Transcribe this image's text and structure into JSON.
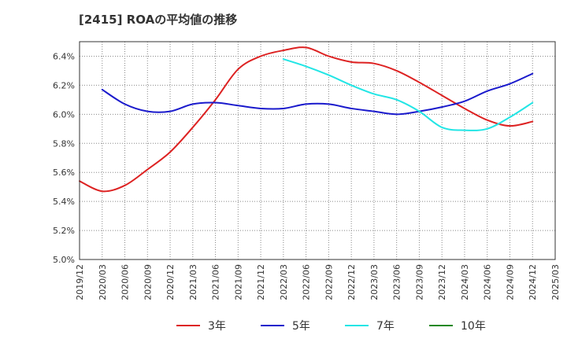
{
  "chart_data": {
    "type": "line",
    "title": "[2415]  ROAの平均値の推移",
    "xlabel": "",
    "ylabel": "",
    "grid": true,
    "legend_position": "bottom",
    "ylim": [
      5.0,
      6.5
    ],
    "x_ticks": [
      "2019/12",
      "2020/03",
      "2020/06",
      "2020/09",
      "2020/12",
      "2021/03",
      "2021/06",
      "2021/09",
      "2021/12",
      "2022/03",
      "2022/06",
      "2022/09",
      "2022/12",
      "2023/03",
      "2023/06",
      "2023/09",
      "2023/12",
      "2024/03",
      "2024/06",
      "2024/09",
      "2024/12",
      "2025/03"
    ],
    "y_ticks": [
      "5.0%",
      "5.2%",
      "5.4%",
      "5.6%",
      "5.8%",
      "6.0%",
      "6.2%",
      "6.4%"
    ],
    "y_tick_values": [
      5.0,
      5.2,
      5.4,
      5.6,
      5.8,
      6.0,
      6.2,
      6.4
    ],
    "series": [
      {
        "name": "3年",
        "color": "#dd2222",
        "points": [
          [
            "2019/12",
            5.54
          ],
          [
            "2020/03",
            5.47
          ],
          [
            "2020/06",
            5.51
          ],
          [
            "2020/09",
            5.62
          ],
          [
            "2020/12",
            5.74
          ],
          [
            "2021/03",
            5.91
          ],
          [
            "2021/06",
            6.1
          ],
          [
            "2021/09",
            6.31
          ],
          [
            "2021/12",
            6.4
          ],
          [
            "2022/03",
            6.44
          ],
          [
            "2022/06",
            6.46
          ],
          [
            "2022/09",
            6.4
          ],
          [
            "2022/12",
            6.36
          ],
          [
            "2023/03",
            6.35
          ],
          [
            "2023/06",
            6.3
          ],
          [
            "2023/09",
            6.22
          ],
          [
            "2023/12",
            6.13
          ],
          [
            "2024/03",
            6.04
          ],
          [
            "2024/06",
            5.96
          ],
          [
            "2024/09",
            5.92
          ],
          [
            "2024/12",
            5.95
          ]
        ]
      },
      {
        "name": "5年",
        "color": "#1a1acc",
        "points": [
          [
            "2020/03",
            6.17
          ],
          [
            "2020/06",
            6.07
          ],
          [
            "2020/09",
            6.02
          ],
          [
            "2020/12",
            6.02
          ],
          [
            "2021/03",
            6.07
          ],
          [
            "2021/06",
            6.08
          ],
          [
            "2021/09",
            6.06
          ],
          [
            "2021/12",
            6.04
          ],
          [
            "2022/03",
            6.04
          ],
          [
            "2022/06",
            6.07
          ],
          [
            "2022/09",
            6.07
          ],
          [
            "2022/12",
            6.04
          ],
          [
            "2023/03",
            6.02
          ],
          [
            "2023/06",
            6.0
          ],
          [
            "2023/09",
            6.02
          ],
          [
            "2023/12",
            6.05
          ],
          [
            "2024/03",
            6.09
          ],
          [
            "2024/06",
            6.16
          ],
          [
            "2024/09",
            6.21
          ],
          [
            "2024/12",
            6.28
          ]
        ]
      },
      {
        "name": "7年",
        "color": "#22e5e5",
        "points": [
          [
            "2022/03",
            6.38
          ],
          [
            "2022/06",
            6.33
          ],
          [
            "2022/09",
            6.27
          ],
          [
            "2022/12",
            6.2
          ],
          [
            "2023/03",
            6.14
          ],
          [
            "2023/06",
            6.1
          ],
          [
            "2023/09",
            6.02
          ],
          [
            "2023/12",
            5.91
          ],
          [
            "2024/03",
            5.89
          ],
          [
            "2024/06",
            5.9
          ],
          [
            "2024/09",
            5.98
          ],
          [
            "2024/12",
            6.08
          ]
        ]
      },
      {
        "name": "10年",
        "color": "#228822",
        "points": []
      }
    ]
  }
}
